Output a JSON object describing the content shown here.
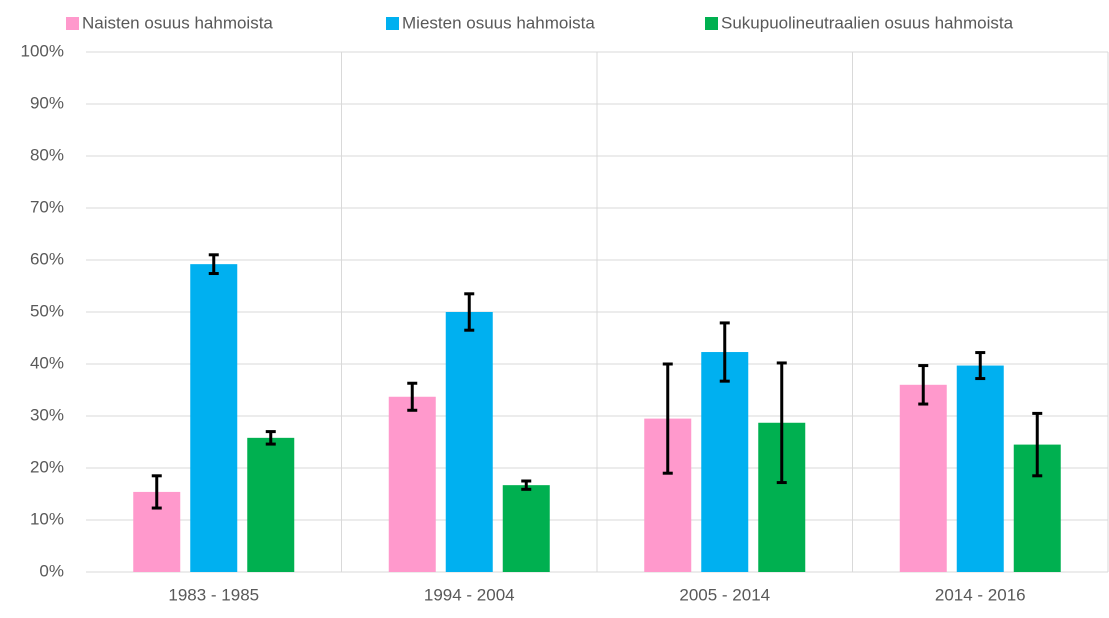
{
  "chart_data": {
    "type": "bar",
    "categories": [
      "1983 - 1985",
      "1994 - 2004",
      "2005 - 2014",
      "2014 - 2016"
    ],
    "series": [
      {
        "name": "Naisten osuus hahmoista",
        "color": "#ff99cc",
        "values": [
          15.4,
          33.7,
          29.5,
          36.0
        ],
        "errors": [
          3.1,
          2.6,
          10.5,
          3.7
        ]
      },
      {
        "name": "Miesten osuus hahmoista",
        "color": "#00b0f0",
        "values": [
          59.2,
          50.0,
          42.3,
          39.7
        ],
        "errors": [
          1.8,
          3.5,
          5.6,
          2.5
        ]
      },
      {
        "name": "Sukupuolineutraalien osuus hahmoista",
        "color": "#00b050",
        "values": [
          25.8,
          16.7,
          28.7,
          24.5
        ],
        "errors": [
          1.2,
          0.8,
          11.5,
          6.0
        ]
      }
    ],
    "ylim": [
      0,
      100
    ],
    "yticks": [
      {
        "value": 0,
        "label": "0%"
      },
      {
        "value": 10,
        "label": "10%"
      },
      {
        "value": 20,
        "label": "20%"
      },
      {
        "value": 30,
        "label": "30%"
      },
      {
        "value": 40,
        "label": "40%"
      },
      {
        "value": 50,
        "label": "50%"
      },
      {
        "value": 60,
        "label": "60%"
      },
      {
        "value": 70,
        "label": "70%"
      },
      {
        "value": 80,
        "label": "80%"
      },
      {
        "value": 90,
        "label": "90%"
      },
      {
        "value": 100,
        "label": "100%"
      }
    ],
    "grid": true,
    "legend": "top"
  }
}
